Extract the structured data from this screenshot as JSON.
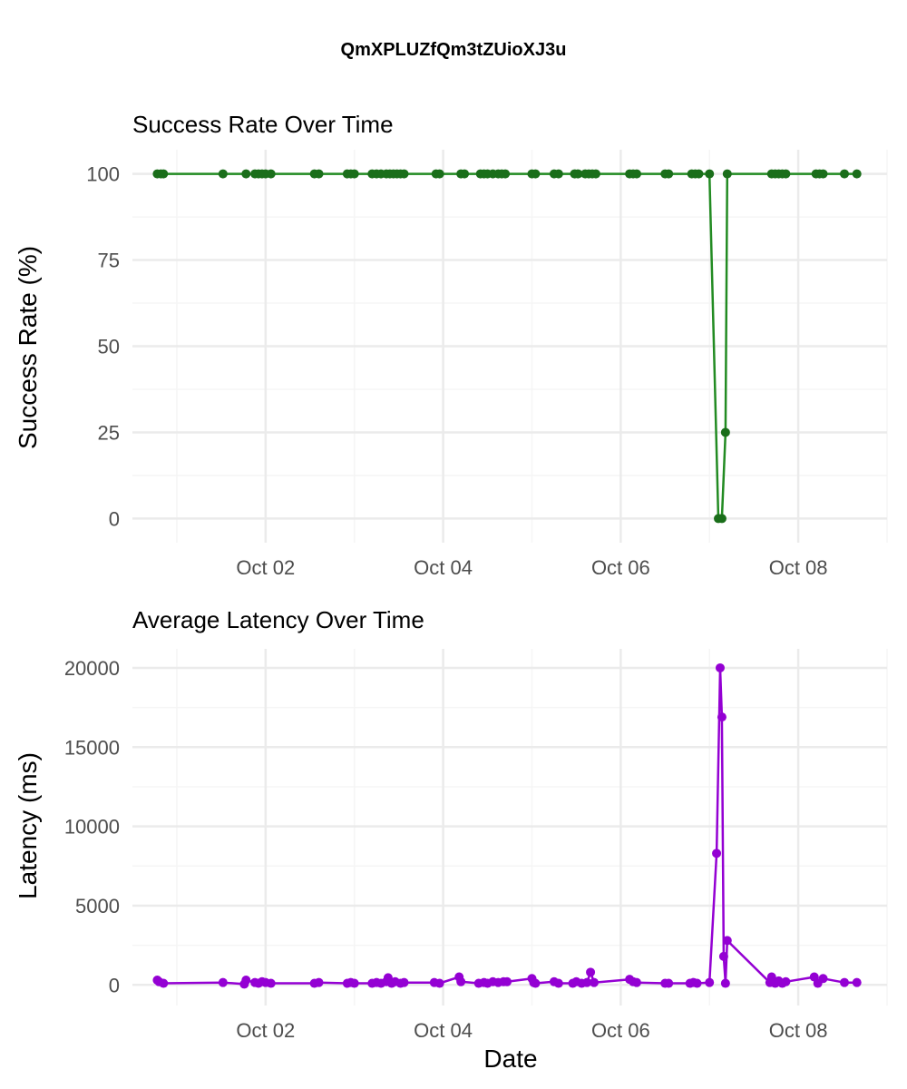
{
  "page_title": "QmXPLUZfQm3tZUioXJ3u",
  "colors": {
    "success": "#1a6e1a",
    "success_line": "#228b22",
    "latency": "#9400d3",
    "grid": "#ebebeb",
    "grid_minor": "#f5f5f5"
  },
  "chart_data": [
    {
      "type": "line",
      "title": "Success Rate Over Time",
      "xlabel": "",
      "ylabel": "Success Rate (%)",
      "x_ticks": [
        "Oct 02",
        "Oct 04",
        "Oct 06",
        "Oct 08"
      ],
      "x_tick_values": [
        2,
        4,
        6,
        8
      ],
      "y_ticks": [
        0,
        25,
        50,
        75,
        100
      ],
      "xlim": [
        0.5,
        9.0
      ],
      "ylim": [
        -7,
        107
      ],
      "grid": true,
      "series": [
        {
          "x": [
            0.78,
            0.82,
            0.85,
            1.52,
            1.78,
            1.88,
            1.92,
            1.96,
            2.0,
            2.06,
            2.55,
            2.6,
            2.92,
            2.96,
            3.0,
            3.2,
            3.25,
            3.3,
            3.36,
            3.4,
            3.44,
            3.48,
            3.52,
            3.56,
            3.92,
            3.96,
            4.2,
            4.24,
            4.42,
            4.46,
            4.5,
            4.56,
            4.62,
            4.66,
            4.7,
            5.0,
            5.04,
            5.25,
            5.3,
            5.48,
            5.52,
            5.6,
            5.64,
            5.68,
            5.72,
            6.1,
            6.14,
            6.18,
            6.5,
            6.54,
            6.8,
            6.84,
            6.88,
            7.0,
            7.1,
            7.14,
            7.18,
            7.2,
            7.7,
            7.74,
            7.78,
            7.82,
            7.86,
            8.2,
            8.24,
            8.28,
            8.52,
            8.66
          ],
          "y": [
            100,
            100,
            100,
            100,
            100,
            100,
            100,
            100,
            100,
            100,
            100,
            100,
            100,
            100,
            100,
            100,
            100,
            100,
            100,
            100,
            100,
            100,
            100,
            100,
            100,
            100,
            100,
            100,
            100,
            100,
            100,
            100,
            100,
            100,
            100,
            100,
            100,
            100,
            100,
            100,
            100,
            100,
            100,
            100,
            100,
            100,
            100,
            100,
            100,
            100,
            100,
            100,
            100,
            100,
            0,
            0,
            25,
            100,
            100,
            100,
            100,
            100,
            100,
            100,
            100,
            100,
            100,
            100
          ]
        }
      ]
    },
    {
      "type": "line",
      "title": "Average Latency Over Time",
      "xlabel": "Date",
      "ylabel": "Latency (ms)",
      "x_ticks": [
        "Oct 02",
        "Oct 04",
        "Oct 06",
        "Oct 08"
      ],
      "x_tick_values": [
        2,
        4,
        6,
        8
      ],
      "y_ticks": [
        0,
        5000,
        10000,
        15000,
        20000
      ],
      "xlim": [
        0.5,
        9.0
      ],
      "ylim": [
        -1300,
        21200
      ],
      "grid": true,
      "series": [
        {
          "x": [
            0.78,
            0.8,
            0.85,
            1.52,
            1.76,
            1.78,
            1.88,
            1.92,
            1.96,
            2.0,
            2.06,
            2.55,
            2.6,
            2.92,
            2.96,
            3.0,
            3.2,
            3.25,
            3.3,
            3.36,
            3.38,
            3.42,
            3.46,
            3.52,
            3.56,
            3.9,
            3.96,
            4.18,
            4.2,
            4.4,
            4.46,
            4.5,
            4.56,
            4.62,
            4.68,
            4.72,
            5.0,
            5.02,
            5.04,
            5.25,
            5.3,
            5.46,
            5.5,
            5.56,
            5.62,
            5.66,
            5.7,
            6.1,
            6.14,
            6.18,
            6.5,
            6.54,
            6.78,
            6.82,
            6.86,
            7.0,
            7.08,
            7.12,
            7.14,
            7.16,
            7.18,
            7.2,
            7.68,
            7.7,
            7.74,
            7.78,
            7.82,
            7.86,
            8.18,
            8.22,
            8.28,
            8.52,
            8.66
          ],
          "y": [
            300,
            200,
            100,
            150,
            50,
            300,
            150,
            100,
            200,
            150,
            100,
            100,
            150,
            100,
            150,
            100,
            100,
            150,
            100,
            200,
            450,
            100,
            200,
            100,
            150,
            150,
            100,
            500,
            200,
            100,
            150,
            100,
            200,
            150,
            200,
            200,
            400,
            150,
            100,
            200,
            100,
            100,
            200,
            100,
            150,
            800,
            150,
            350,
            200,
            150,
            100,
            100,
            100,
            150,
            100,
            150,
            8300,
            20000,
            16900,
            1800,
            100,
            2800,
            150,
            500,
            100,
            250,
            100,
            200,
            500,
            100,
            400,
            150,
            150
          ]
        }
      ]
    }
  ]
}
